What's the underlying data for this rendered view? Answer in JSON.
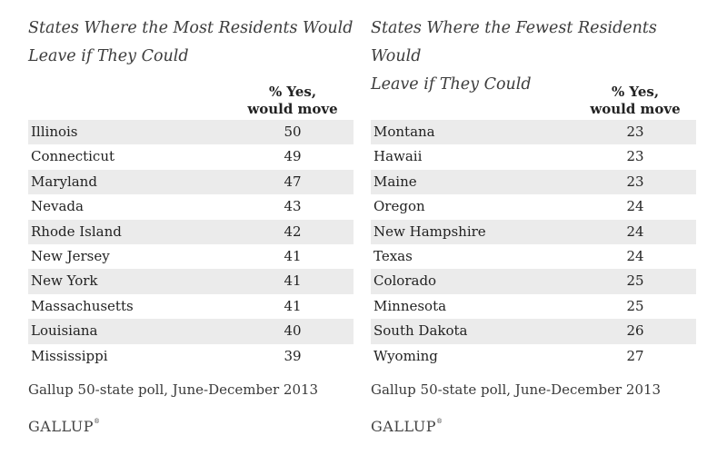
{
  "left": {
    "title_line1": "States Where the Most Residents Would",
    "title_line2": "Leave if They Could",
    "header_line1": "% Yes,",
    "header_line2": "would move",
    "rows": [
      {
        "state": "Illinois",
        "value": "50"
      },
      {
        "state": "Connecticut",
        "value": "49"
      },
      {
        "state": "Maryland",
        "value": "47"
      },
      {
        "state": "Nevada",
        "value": "43"
      },
      {
        "state": "Rhode Island",
        "value": "42"
      },
      {
        "state": "New Jersey",
        "value": "41"
      },
      {
        "state": "New York",
        "value": "41"
      },
      {
        "state": "Massachusetts",
        "value": "41"
      },
      {
        "state": "Louisiana",
        "value": "40"
      },
      {
        "state": "Mississippi",
        "value": "39"
      }
    ],
    "source": "Gallup 50-state poll, June-December 2013",
    "brand": "GALLUP",
    "brand_mark": "®"
  },
  "right": {
    "title_line1": "States Where the Fewest Residents Would",
    "title_line2": "Leave if They Could",
    "header_line1": "% Yes,",
    "header_line2": "would move",
    "rows": [
      {
        "state": "Montana",
        "value": "23"
      },
      {
        "state": "Hawaii",
        "value": "23"
      },
      {
        "state": "Maine",
        "value": "23"
      },
      {
        "state": "Oregon",
        "value": "24"
      },
      {
        "state": "New Hampshire",
        "value": "24"
      },
      {
        "state": "Texas",
        "value": "24"
      },
      {
        "state": "Colorado",
        "value": "25"
      },
      {
        "state": "Minnesota",
        "value": "25"
      },
      {
        "state": "South Dakota",
        "value": "26"
      },
      {
        "state": "Wyoming",
        "value": "27"
      }
    ],
    "source": "Gallup 50-state poll, June-December 2013",
    "brand": "GALLUP",
    "brand_mark": "®"
  }
}
